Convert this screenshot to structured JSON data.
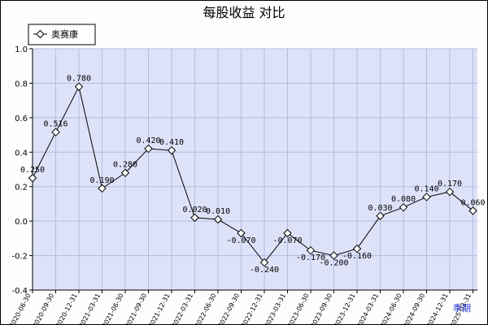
{
  "chart_data": {
    "type": "line",
    "title": "每股收益  对比",
    "categories": [
      "2020-06-30",
      "2020-09-30",
      "2020-12-31",
      "2021-03-31",
      "2021-06-30",
      "2021-09-30",
      "2021-12-31",
      "2022-03-31",
      "2022-06-30",
      "2022-09-30",
      "2022-12-31",
      "2023-03-31",
      "2023-06-30",
      "2023-09-30",
      "2023-12-31",
      "2024-03-31",
      "2024-06-30",
      "2024-09-30",
      "2024-12-31",
      "2025-03-31"
    ],
    "series": [
      {
        "name": "奥赛康",
        "values": [
          0.25,
          0.516,
          0.78,
          0.19,
          0.28,
          0.42,
          0.41,
          0.02,
          0.01,
          -0.07,
          -0.24,
          -0.07,
          -0.17,
          -0.2,
          -0.16,
          0.03,
          0.08,
          0.14,
          0.17,
          0.06
        ],
        "labels": [
          "0.250",
          "0.516",
          "0.780",
          "0.190",
          "0.280",
          "0.420",
          "0.410",
          "0.020",
          "0.010",
          "-0.070",
          "-0.240",
          "-0.070",
          "-0.170",
          "-0.200",
          "-0.160",
          "0.030",
          "0.080",
          "0.140",
          "0.170",
          "0.060"
        ]
      }
    ],
    "ylim": [
      -0.4,
      1.0
    ],
    "yticks": [
      -0.4,
      -0.2,
      0.0,
      0.2,
      0.4,
      0.6,
      0.8,
      1.0
    ],
    "ytick_labels": [
      "-0.4",
      "-0.2",
      "0.0",
      "0.2",
      "0.4",
      "0.6",
      "0.8",
      "1.0"
    ],
    "grid": true,
    "legend": "top-left",
    "corner_label": "季期",
    "colors": {
      "plot_background": "#dde2f8",
      "grid": "#b3bce0",
      "line": "#000000",
      "marker_fill": "#ffffff",
      "corner_label": "#1a2fd0"
    }
  }
}
